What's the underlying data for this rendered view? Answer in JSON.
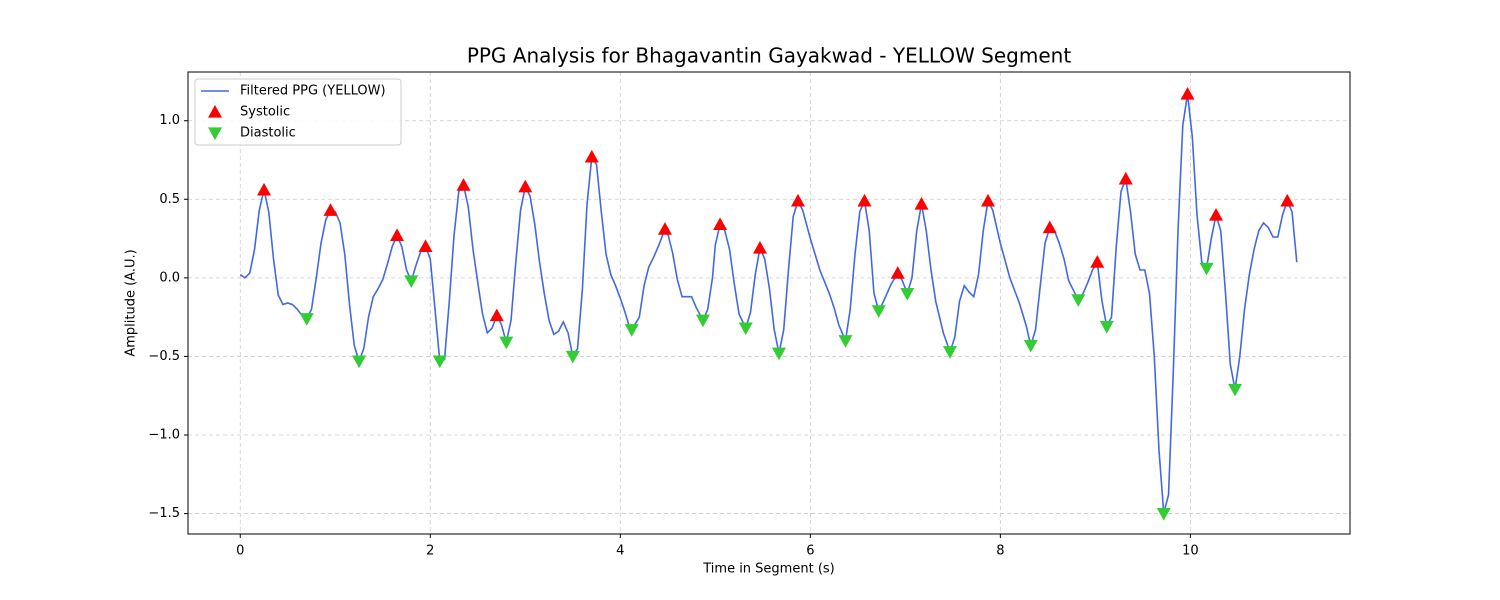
{
  "chart_data": {
    "type": "line",
    "title": "PPG Analysis for Bhagavantin Gayakwad - YELLOW Segment",
    "xlabel": "Time in Segment (s)",
    "ylabel": "Amplitude (A.U.)",
    "xlim": [
      -0.55,
      11.68
    ],
    "ylim": [
      -1.63,
      1.31
    ],
    "xticks": [
      0,
      2,
      4,
      6,
      8,
      10
    ],
    "yticks": [
      {
        "value": -1.5,
        "label": "−1.5"
      },
      {
        "value": -1.0,
        "label": "−1.0"
      },
      {
        "value": -0.5,
        "label": "−0.5"
      },
      {
        "value": 0.0,
        "label": "0.0"
      },
      {
        "value": 0.5,
        "label": "0.5"
      },
      {
        "value": 1.0,
        "label": "1.0"
      }
    ],
    "grid": true,
    "legend": "upper left",
    "series": [
      {
        "name": "Filtered PPG (YELLOW)",
        "type": "line",
        "color": "#4169e1",
        "x": [
          0,
          0.05,
          0.1,
          0.15,
          0.2,
          0.25,
          0.3,
          0.35,
          0.4,
          0.45,
          0.5,
          0.55,
          0.6,
          0.65,
          0.7,
          0.75,
          0.8,
          0.85,
          0.9,
          0.95,
          1.0,
          1.05,
          1.1,
          1.15,
          1.2,
          1.25,
          1.3,
          1.35,
          1.4,
          1.45,
          1.5,
          1.55,
          1.6,
          1.65,
          1.7,
          1.75,
          1.8,
          1.85,
          1.9,
          1.95,
          2.0,
          2.05,
          2.1,
          2.15,
          2.2,
          2.25,
          2.3,
          2.35,
          2.4,
          2.45,
          2.5,
          2.55,
          2.6,
          2.65,
          2.7,
          2.75,
          2.8,
          2.85,
          2.9,
          2.95,
          3.0,
          3.05,
          3.1,
          3.15,
          3.2,
          3.25,
          3.3,
          3.35,
          3.4,
          3.45,
          3.5,
          3.55,
          3.6,
          3.65,
          3.7,
          3.75,
          3.8,
          3.85,
          3.9,
          3.95,
          4.0,
          4.05,
          4.1,
          4.12,
          4.2,
          4.25,
          4.3,
          4.35,
          4.4,
          4.47,
          4.5,
          4.55,
          4.6,
          4.65,
          4.75,
          4.8,
          4.87,
          4.92,
          4.97,
          5.0,
          5.05,
          5.1,
          5.15,
          5.2,
          5.25,
          5.32,
          5.37,
          5.42,
          5.47,
          5.52,
          5.57,
          5.62,
          5.67,
          5.72,
          5.77,
          5.82,
          5.87,
          5.92,
          6.0,
          6.1,
          6.2,
          6.25,
          6.3,
          6.37,
          6.42,
          6.47,
          6.52,
          6.57,
          6.62,
          6.67,
          6.72,
          6.77,
          6.85,
          6.92,
          6.97,
          7.02,
          7.07,
          7.12,
          7.17,
          7.22,
          7.27,
          7.32,
          7.4,
          7.47,
          7.52,
          7.57,
          7.62,
          7.67,
          7.72,
          7.77,
          7.82,
          7.87,
          7.92,
          8.0,
          8.1,
          8.2,
          8.27,
          8.32,
          8.37,
          8.42,
          8.47,
          8.52,
          8.57,
          8.62,
          8.67,
          8.72,
          8.82,
          8.87,
          8.92,
          8.97,
          9.02,
          9.07,
          9.12,
          9.17,
          9.22,
          9.27,
          9.32,
          9.37,
          9.42,
          9.47,
          9.52,
          9.57,
          9.62,
          9.67,
          9.72,
          9.77,
          9.82,
          9.87,
          9.92,
          9.97,
          10.02,
          10.07,
          10.12,
          10.17,
          10.22,
          10.27,
          10.32,
          10.37,
          10.42,
          10.47,
          10.52,
          10.57,
          10.62,
          10.67,
          10.72,
          10.77,
          10.82,
          10.87,
          10.92,
          10.97,
          11.02,
          11.07,
          11.12
        ],
        "values": [
          0.02,
          0.0,
          0.03,
          0.18,
          0.43,
          0.56,
          0.42,
          0.12,
          -0.11,
          -0.17,
          -0.16,
          -0.17,
          -0.2,
          -0.24,
          -0.26,
          -0.2,
          0.0,
          0.22,
          0.37,
          0.43,
          0.42,
          0.35,
          0.15,
          -0.17,
          -0.43,
          -0.53,
          -0.45,
          -0.25,
          -0.12,
          -0.07,
          -0.01,
          0.09,
          0.2,
          0.27,
          0.2,
          0.05,
          -0.02,
          0.08,
          0.17,
          0.2,
          0.12,
          -0.2,
          -0.53,
          -0.52,
          -0.15,
          0.27,
          0.55,
          0.59,
          0.45,
          0.18,
          -0.03,
          -0.23,
          -0.35,
          -0.32,
          -0.24,
          -0.3,
          -0.41,
          -0.27,
          0.1,
          0.43,
          0.58,
          0.52,
          0.34,
          0.1,
          -0.1,
          -0.27,
          -0.36,
          -0.34,
          -0.28,
          -0.35,
          -0.5,
          -0.45,
          -0.08,
          0.47,
          0.77,
          0.72,
          0.42,
          0.15,
          0.02,
          -0.05,
          -0.13,
          -0.22,
          -0.32,
          -0.33,
          -0.25,
          -0.05,
          0.07,
          0.13,
          0.2,
          0.31,
          0.28,
          0.16,
          -0.01,
          -0.12,
          -0.12,
          -0.19,
          -0.27,
          -0.2,
          0.0,
          0.21,
          0.34,
          0.3,
          0.18,
          -0.04,
          -0.23,
          -0.32,
          -0.22,
          0.02,
          0.19,
          0.12,
          -0.07,
          -0.33,
          -0.48,
          -0.33,
          0.05,
          0.39,
          0.49,
          0.43,
          0.25,
          0.05,
          -0.1,
          -0.19,
          -0.3,
          -0.4,
          -0.2,
          0.15,
          0.42,
          0.49,
          0.3,
          -0.1,
          -0.21,
          -0.15,
          -0.04,
          0.03,
          -0.02,
          -0.1,
          0.0,
          0.3,
          0.47,
          0.3,
          0.05,
          -0.15,
          -0.35,
          -0.47,
          -0.38,
          -0.15,
          -0.05,
          -0.09,
          -0.12,
          0.02,
          0.3,
          0.49,
          0.43,
          0.22,
          0.0,
          -0.16,
          -0.3,
          -0.43,
          -0.33,
          -0.05,
          0.22,
          0.32,
          0.3,
          0.22,
          0.12,
          -0.02,
          -0.14,
          -0.1,
          -0.03,
          0.05,
          0.1,
          -0.15,
          -0.31,
          -0.25,
          0.2,
          0.55,
          0.63,
          0.42,
          0.15,
          0.05,
          0.05,
          -0.1,
          -0.5,
          -1.1,
          -1.5,
          -1.38,
          -0.6,
          0.3,
          0.97,
          1.17,
          0.9,
          0.4,
          0.1,
          0.06,
          0.25,
          0.4,
          0.3,
          -0.1,
          -0.55,
          -0.71,
          -0.5,
          -0.2,
          0.02,
          0.18,
          0.3,
          0.35,
          0.32,
          0.26,
          0.26,
          0.4,
          0.49,
          0.42,
          0.1
        ]
      },
      {
        "name": "Systolic",
        "type": "scatter",
        "marker": "triangle-up",
        "color": "#ff0000",
        "x": [
          0.25,
          0.95,
          1.65,
          1.95,
          2.35,
          2.7,
          3.0,
          3.7,
          4.47,
          5.05,
          5.47,
          5.87,
          6.57,
          6.92,
          7.17,
          7.87,
          8.52,
          9.02,
          9.32,
          9.97,
          10.27,
          11.02
        ],
        "values": [
          0.56,
          0.43,
          0.27,
          0.2,
          0.59,
          -0.24,
          0.58,
          0.77,
          0.31,
          0.34,
          0.19,
          0.49,
          0.49,
          0.03,
          0.47,
          0.49,
          0.32,
          0.1,
          0.63,
          1.17,
          0.4,
          0.49
        ]
      },
      {
        "name": "Diastolic",
        "type": "scatter",
        "marker": "triangle-down",
        "color": "#32cd32",
        "x": [
          0.7,
          1.25,
          1.8,
          2.1,
          2.8,
          3.5,
          4.12,
          4.87,
          5.32,
          5.67,
          6.37,
          6.72,
          7.02,
          7.47,
          8.32,
          8.82,
          9.12,
          9.72,
          10.17,
          10.47
        ],
        "values": [
          -0.26,
          -0.53,
          -0.02,
          -0.53,
          -0.41,
          -0.5,
          -0.33,
          -0.27,
          -0.32,
          -0.48,
          -0.4,
          -0.21,
          -0.1,
          -0.47,
          -0.43,
          -0.14,
          -0.31,
          -1.5,
          0.06,
          -0.71
        ]
      }
    ]
  }
}
